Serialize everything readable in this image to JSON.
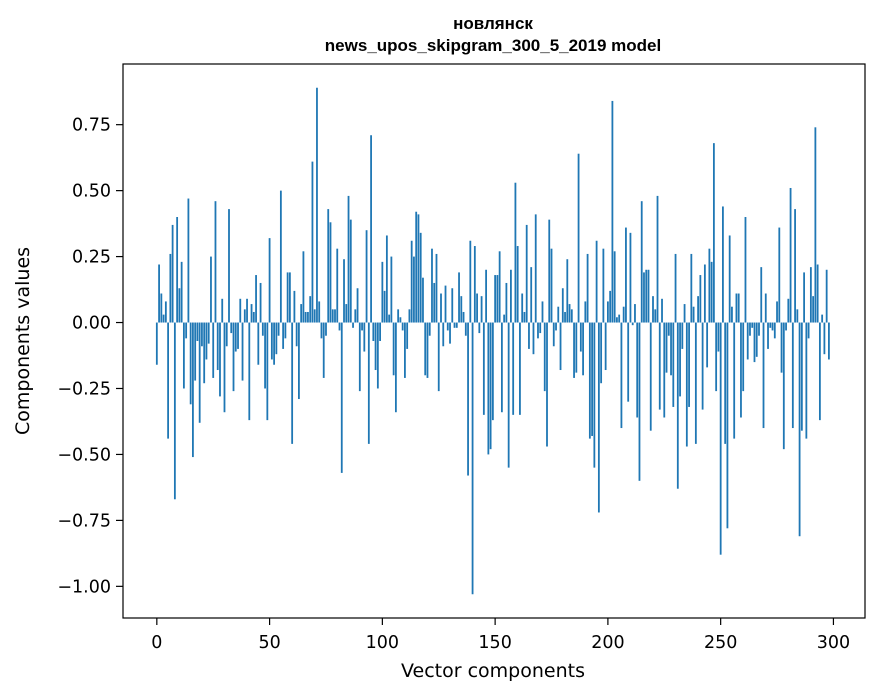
{
  "chart_data": {
    "type": "bar",
    "title": "новлянск",
    "subtitle": "news_upos_skipgram_300_5_2019 model",
    "xlabel": "Vector components",
    "ylabel": "Components values",
    "xlim": [
      -15,
      314
    ],
    "ylim": [
      -1.12,
      0.98
    ],
    "xticks": [
      0,
      50,
      100,
      150,
      200,
      250,
      300
    ],
    "xtick_labels": [
      "0",
      "50",
      "100",
      "150",
      "200",
      "250",
      "300"
    ],
    "yticks": [
      0.75,
      0.5,
      0.25,
      0.0,
      -0.25,
      -0.5,
      -0.75,
      -1.0
    ],
    "ytick_labels": [
      "0.75",
      "0.50",
      "0.25",
      "0.00",
      "−0.25",
      "−0.50",
      "−0.75",
      "−1.00"
    ],
    "bar_color": "#1f77b4",
    "grid": false,
    "values": [
      -0.16,
      0.22,
      0.11,
      0.03,
      0.08,
      -0.44,
      0.26,
      0.37,
      -0.67,
      0.4,
      0.13,
      0.23,
      -0.25,
      -0.06,
      0.47,
      -0.31,
      -0.51,
      -0.22,
      -0.07,
      -0.38,
      -0.09,
      -0.23,
      -0.14,
      -0.08,
      0.25,
      -0.21,
      0.46,
      -0.18,
      -0.28,
      0.09,
      -0.34,
      -0.09,
      0.43,
      -0.04,
      -0.26,
      -0.11,
      -0.1,
      0.09,
      -0.22,
      0.05,
      0.09,
      -0.37,
      0.07,
      0.04,
      0.18,
      -0.16,
      0.15,
      -0.05,
      -0.25,
      -0.37,
      0.32,
      -0.14,
      -0.16,
      -0.12,
      -0.05,
      0.5,
      -0.1,
      -0.06,
      0.19,
      0.19,
      -0.46,
      0.12,
      -0.09,
      -0.29,
      0.07,
      0.27,
      0.04,
      0.04,
      0.1,
      0.61,
      0.05,
      0.89,
      0.08,
      -0.06,
      -0.21,
      -0.05,
      0.43,
      0.38,
      0.05,
      0.05,
      0.28,
      -0.03,
      -0.57,
      0.24,
      0.07,
      0.48,
      0.39,
      -0.02,
      0.05,
      0.13,
      -0.26,
      -0.03,
      -0.11,
      0.35,
      -0.46,
      0.71,
      -0.07,
      -0.18,
      -0.25,
      -0.07,
      0.23,
      0.12,
      0.33,
      0.03,
      0.25,
      -0.2,
      -0.34,
      0.05,
      0.02,
      -0.03,
      -0.21,
      -0.1,
      0.05,
      0.31,
      0.25,
      0.42,
      0.41,
      0.34,
      0.17,
      -0.2,
      -0.21,
      -0.05,
      0.28,
      0.15,
      0.26,
      -0.26,
      0.11,
      -0.09,
      0.14,
      -0.03,
      -0.08,
      0.13,
      -0.02,
      -0.02,
      0.19,
      0.1,
      0.04,
      -0.05,
      -0.58,
      0.31,
      -1.03,
      0.29,
      0.11,
      -0.04,
      0.1,
      -0.35,
      0.2,
      -0.5,
      -0.48,
      -0.37,
      0.18,
      0.18,
      0.27,
      -0.34,
      0.03,
      0.15,
      -0.55,
      0.2,
      -0.35,
      0.53,
      0.29,
      -0.35,
      0.11,
      0.04,
      0.37,
      -0.1,
      0.21,
      -0.12,
      0.41,
      -0.06,
      -0.04,
      0.08,
      -0.26,
      -0.47,
      0.39,
      0.28,
      -0.09,
      -0.03,
      0.06,
      -0.18,
      0.13,
      0.04,
      0.24,
      0.07,
      0.05,
      -0.21,
      -0.19,
      0.64,
      -0.11,
      -0.2,
      0.08,
      0.26,
      -0.44,
      -0.43,
      -0.55,
      0.31,
      -0.72,
      -0.23,
      0.28,
      -0.18,
      0.08,
      0.12,
      0.84,
      0.27,
      0.02,
      0.03,
      -0.4,
      0.06,
      0.36,
      -0.3,
      0.34,
      -0.01,
      0.07,
      -0.36,
      -0.6,
      0.46,
      0.19,
      0.2,
      0.2,
      -0.41,
      0.1,
      0.05,
      0.48,
      -0.33,
      0.09,
      -0.36,
      -0.19,
      -0.05,
      -0.2,
      -0.32,
      0.26,
      -0.63,
      -0.28,
      -0.1,
      0.07,
      -0.47,
      -0.32,
      0.26,
      0.06,
      -0.46,
      0.1,
      0.18,
      -0.33,
      0.22,
      -0.17,
      0.28,
      0.23,
      0.68,
      -0.26,
      -0.11,
      -0.88,
      0.44,
      -0.46,
      -0.78,
      0.33,
      0.06,
      -0.44,
      0.11,
      0.11,
      -0.36,
      -0.26,
      0.4,
      -0.14,
      -0.05,
      -0.02,
      -0.15,
      -0.13,
      -0.05,
      0.21,
      -0.4,
      0.11,
      -0.1,
      -0.02,
      -0.03,
      -0.06,
      0.08,
      0.36,
      -0.19,
      -0.48,
      -0.03,
      0.09,
      0.51,
      -0.4,
      0.43,
      0.05,
      -0.81,
      -0.41,
      0.19,
      -0.44,
      -0.06,
      0.21,
      0.1,
      0.74,
      0.22,
      -0.37,
      0.03,
      -0.12,
      0.2,
      -0.14
    ]
  }
}
